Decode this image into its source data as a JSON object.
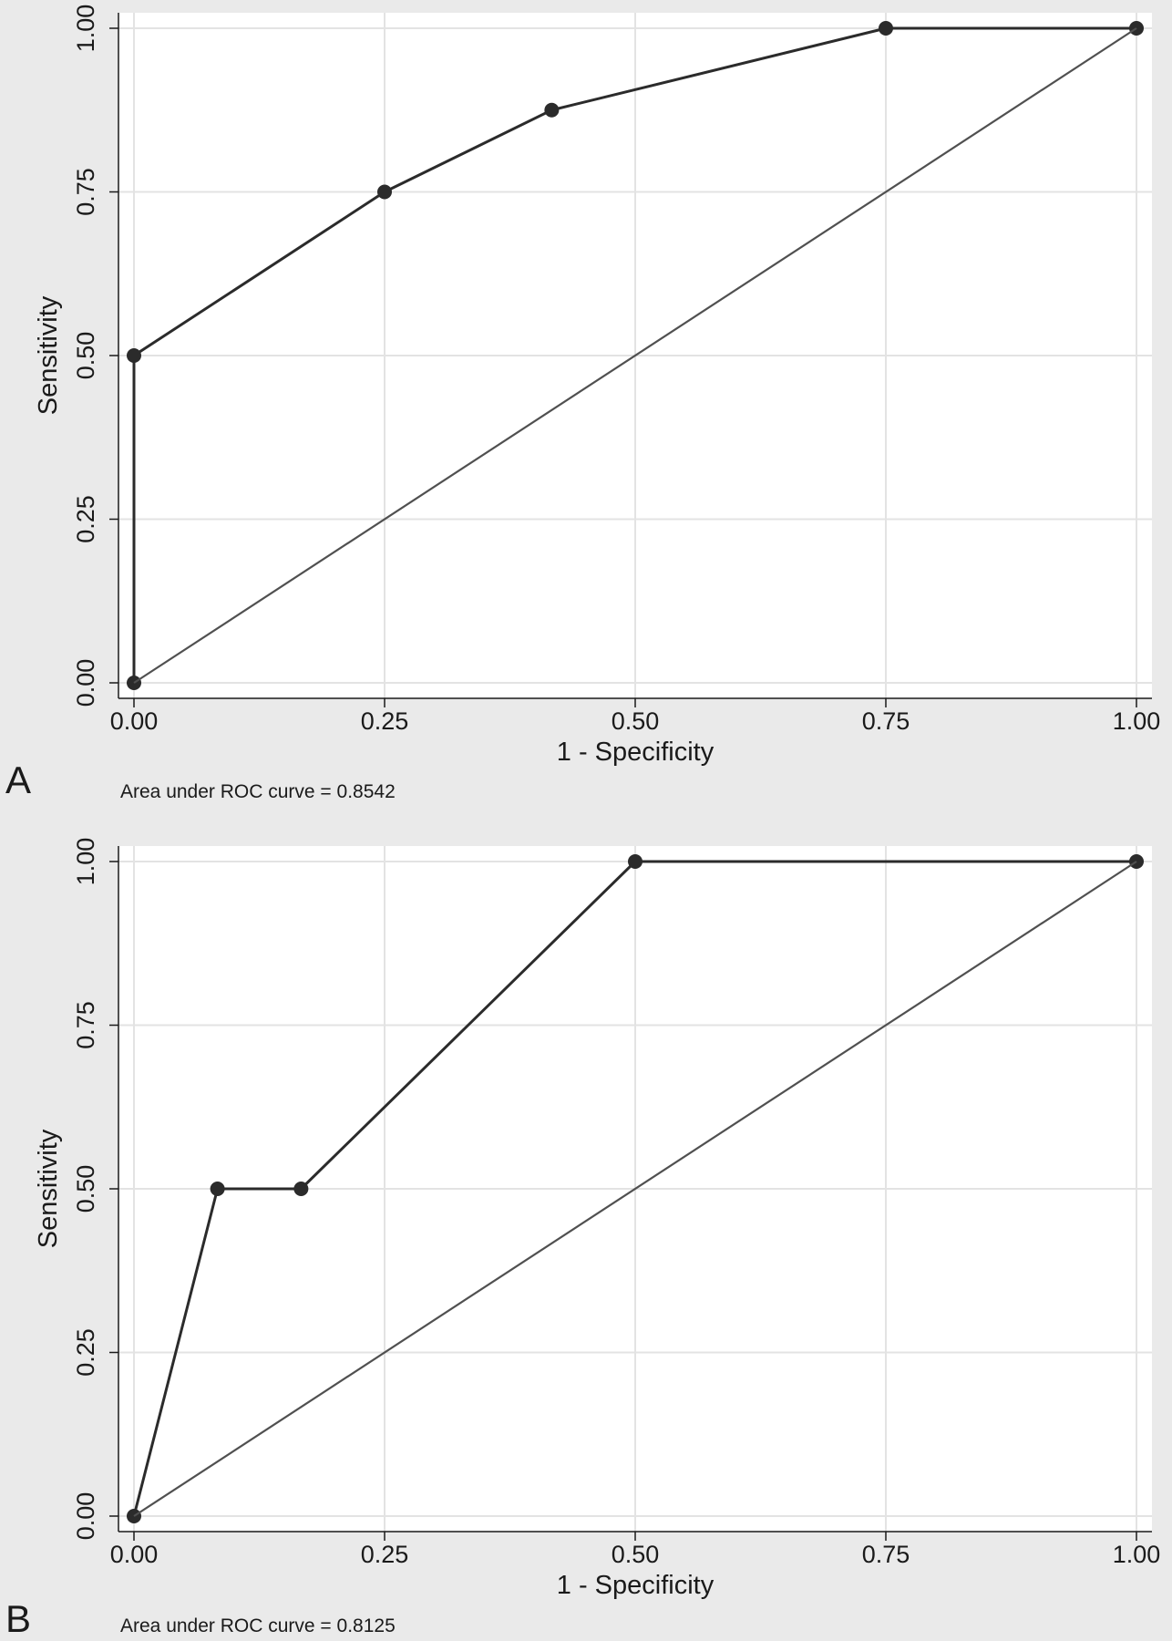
{
  "chart_data": [
    {
      "panel_label": "A",
      "type": "line",
      "xlabel": "1 - Specificity",
      "ylabel": "Sensitivity",
      "xlim": [
        0,
        1
      ],
      "ylim": [
        0,
        1
      ],
      "xticks": [
        "0.00",
        "0.25",
        "0.50",
        "0.75",
        "1.00"
      ],
      "yticks": [
        "0.00",
        "0.25",
        "0.50",
        "0.75",
        "1.00"
      ],
      "grid": true,
      "series": [
        {
          "x": [
            0,
            0,
            0.25,
            0.4167,
            0.75,
            1.0
          ],
          "y": [
            0,
            0.5,
            0.75,
            0.875,
            1.0,
            1.0
          ],
          "markers": true
        },
        {
          "x": [
            0,
            1
          ],
          "y": [
            0,
            1
          ],
          "markers": false
        }
      ],
      "note": "Area under ROC curve = 0.8542"
    },
    {
      "panel_label": "B",
      "type": "line",
      "xlabel": "1 - Specificity",
      "ylabel": "Sensitivity",
      "xlim": [
        0,
        1
      ],
      "ylim": [
        0,
        1
      ],
      "xticks": [
        "0.00",
        "0.25",
        "0.50",
        "0.75",
        "1.00"
      ],
      "yticks": [
        "0.00",
        "0.25",
        "0.50",
        "0.75",
        "1.00"
      ],
      "grid": true,
      "series": [
        {
          "x": [
            0,
            0.0833,
            0.1667,
            0.5,
            1.0
          ],
          "y": [
            0,
            0.5,
            0.5,
            1.0,
            1.0
          ],
          "markers": true
        },
        {
          "x": [
            0,
            1
          ],
          "y": [
            0,
            1
          ],
          "markers": false
        }
      ],
      "note": "Area under ROC curve = 0.8125"
    }
  ],
  "colors": {
    "background": "#eaeaea",
    "plot_area": "#ffffff",
    "gridline": "#e3e3e3",
    "curve": "#2b2b2b",
    "reference_line": "#505050"
  }
}
